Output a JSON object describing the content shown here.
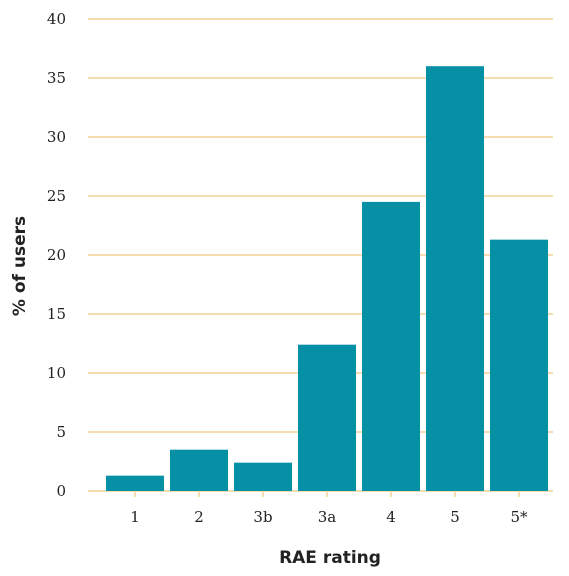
{
  "chart_data": {
    "type": "bar",
    "title": "",
    "xlabel": "RAE rating",
    "ylabel": "% of users",
    "categories": [
      "1",
      "2",
      "3b",
      "3a",
      "4",
      "5",
      "5*"
    ],
    "values": [
      1.3,
      3.5,
      2.4,
      12.4,
      24.5,
      36.0,
      21.3
    ],
    "y_ticks": [
      "0",
      "5",
      "10",
      "15",
      "20",
      "25",
      "30",
      "35",
      "40"
    ],
    "ylim": [
      0,
      40
    ],
    "grid": true,
    "legend": "none",
    "colors": {
      "bar": "#0590a6",
      "grid": "#f6ddb0",
      "text": "#222222"
    }
  }
}
